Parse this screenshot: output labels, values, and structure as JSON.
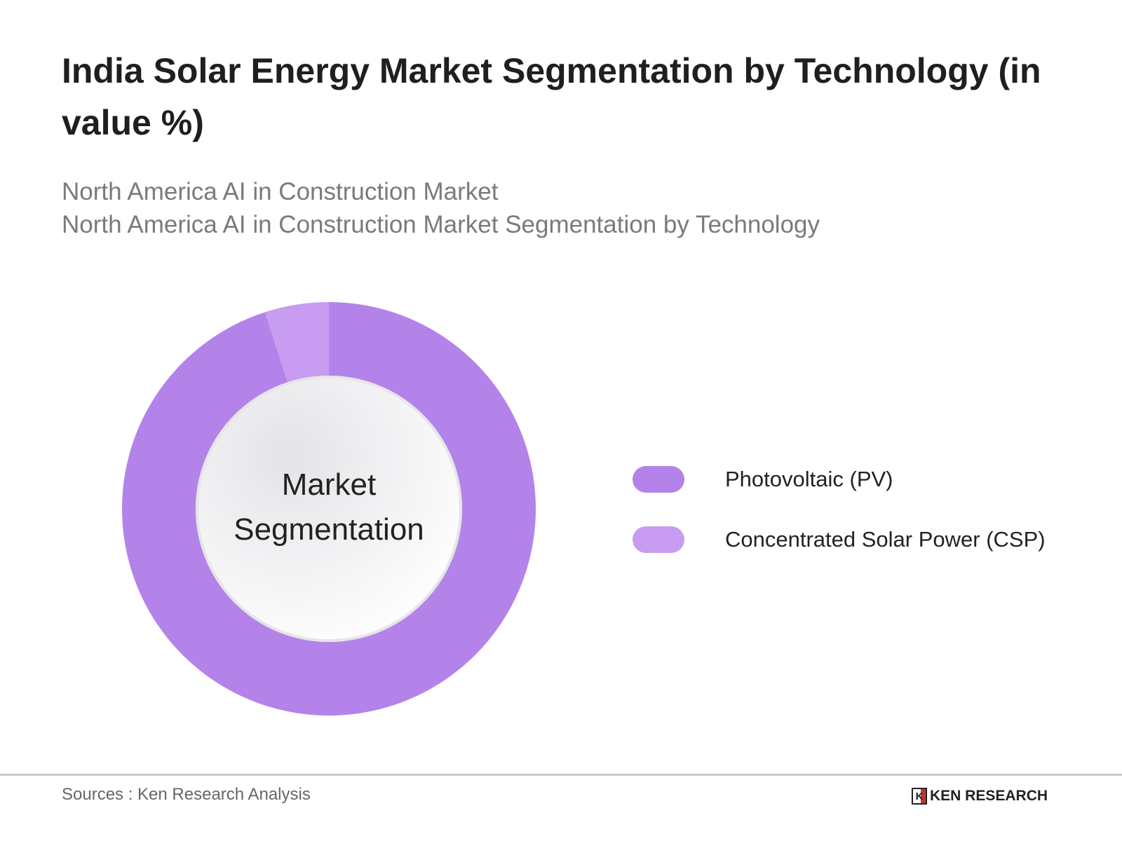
{
  "title": "India Solar Energy Market Segmentation by Technology (in value %)",
  "subtitles": [
    "North America AI in Construction Market",
    "North America AI in Construction Market Segmentation by Technology"
  ],
  "chart_data": {
    "type": "pie",
    "variant": "donut",
    "center_label": "Market Segmentation",
    "categories": [
      "Photovoltaic (PV)",
      "Concentrated Solar Power (CSP)"
    ],
    "values": [
      95,
      5
    ],
    "colors": [
      "#b383ea",
      "#c89cf0"
    ],
    "legend_position": "right"
  },
  "footer": {
    "source": "Sources : Ken Research Analysis",
    "logo_text": "KEN RESEARCH"
  }
}
